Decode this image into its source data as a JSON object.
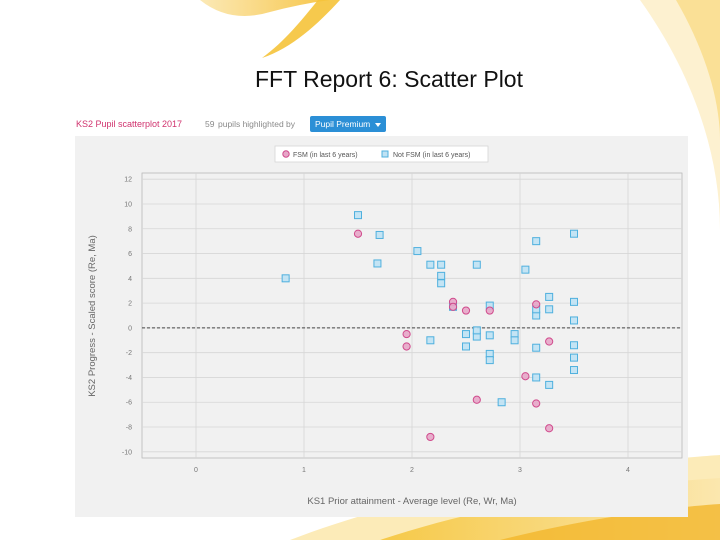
{
  "slide": {
    "title": "FFT Report 6: Scatter Plot"
  },
  "panel": {
    "title": "KS2 Pupil scatterplot 2017",
    "pupil_count": "59",
    "highlighted_text": "pupils highlighted by",
    "dropdown_label": "Pupil Premium"
  },
  "colors": {
    "fsm": "#d04a8c",
    "not_fsm": "#4fb0de",
    "accent": "#2b8fd6",
    "title": "#d0336e"
  },
  "chart_data": {
    "type": "scatter",
    "title": "",
    "xlabel": "KS1 Prior attainment - Average level (Re, Wr, Ma)",
    "ylabel": "KS2 Progress - Scaled score (Re, Ma)",
    "xlim": [
      -0.5,
      4.5
    ],
    "ylim": [
      -10.5,
      12.5
    ],
    "x_ticks": [
      0,
      1,
      2,
      3,
      4
    ],
    "y_ticks": [
      12,
      10,
      8,
      6,
      4,
      2,
      0,
      -2,
      -4,
      -6,
      -8,
      -10
    ],
    "grid": true,
    "reference_line": 0,
    "legend_position": "top",
    "series": [
      {
        "name": "FSM (in last 6 years)",
        "marker": "circle",
        "points": [
          [
            1.5,
            7.6
          ],
          [
            2.38,
            2.1
          ],
          [
            2.38,
            1.7
          ],
          [
            2.5,
            1.4
          ],
          [
            2.72,
            1.4
          ],
          [
            1.95,
            -0.5
          ],
          [
            1.95,
            -1.5
          ],
          [
            2.6,
            -5.8
          ],
          [
            2.17,
            -8.8
          ],
          [
            3.15,
            1.9
          ],
          [
            3.27,
            -1.1
          ],
          [
            3.05,
            -3.9
          ],
          [
            3.15,
            -6.1
          ],
          [
            3.27,
            -8.1
          ]
        ]
      },
      {
        "name": "Not FSM (in last 6 years)",
        "marker": "square",
        "points": [
          [
            0.83,
            4.0
          ],
          [
            1.5,
            9.1
          ],
          [
            1.7,
            7.5
          ],
          [
            1.68,
            5.2
          ],
          [
            2.05,
            6.2
          ],
          [
            2.17,
            5.1
          ],
          [
            2.27,
            5.1
          ],
          [
            2.27,
            4.2
          ],
          [
            2.27,
            3.6
          ],
          [
            2.6,
            5.1
          ],
          [
            2.38,
            1.7
          ],
          [
            2.72,
            1.8
          ],
          [
            2.5,
            -0.5
          ],
          [
            2.6,
            -0.7
          ],
          [
            2.6,
            -0.2
          ],
          [
            2.72,
            -0.6
          ],
          [
            2.5,
            -1.5
          ],
          [
            2.17,
            -1.0
          ],
          [
            2.72,
            -2.1
          ],
          [
            2.72,
            -2.6
          ],
          [
            2.83,
            -6.0
          ],
          [
            2.95,
            -0.5
          ],
          [
            2.95,
            -1.0
          ],
          [
            3.05,
            4.7
          ],
          [
            3.15,
            7.0
          ],
          [
            3.27,
            2.5
          ],
          [
            3.27,
            1.5
          ],
          [
            3.15,
            1.0
          ],
          [
            3.15,
            1.5
          ],
          [
            3.15,
            -1.6
          ],
          [
            3.15,
            -4.0
          ],
          [
            3.27,
            -4.6
          ],
          [
            3.5,
            7.6
          ],
          [
            3.5,
            2.1
          ],
          [
            3.5,
            0.6
          ],
          [
            3.5,
            -1.4
          ],
          [
            3.5,
            -2.4
          ],
          [
            3.5,
            -3.4
          ]
        ]
      }
    ]
  }
}
